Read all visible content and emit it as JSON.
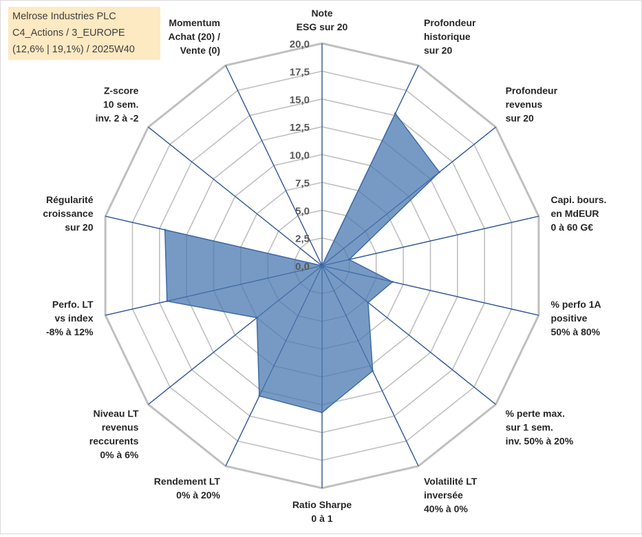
{
  "info_box": {
    "line1": "Melrose Industries PLC",
    "line2": "C4_Actions / 3_EUROPE",
    "line3": "(12,6% | 19,1%) / 2025W40"
  },
  "colors": {
    "grid": "#bfbfbf",
    "spoke": "#2f5597",
    "fill": "#4a78b0",
    "fill_opacity": "0.75",
    "stroke": "#3e6aa6",
    "text": "#262626",
    "tick_text": "#595959",
    "info_bg": "#fde9c2"
  },
  "chart_data": {
    "type": "radar",
    "title": "",
    "rmin": 0,
    "rmax": 20,
    "tick_step": 2.5,
    "tick_labels": [
      "0,0",
      "2,5",
      "5,0",
      "7,5",
      "10,0",
      "12,5",
      "15,0",
      "17,5",
      "20,0"
    ],
    "axes": [
      {
        "label": [
          "Note",
          "ESG sur 20"
        ],
        "value": 0
      },
      {
        "label": [
          "Profondeur",
          "historique",
          "sur 20"
        ],
        "value": 15.2
      },
      {
        "label": [
          "Profondeur",
          "revenus",
          "sur 20"
        ],
        "value": 13.5
      },
      {
        "label": [
          "Capi. bours.",
          "en MdEUR",
          "0 à 60 G€"
        ],
        "value": 2.5
      },
      {
        "label": [
          "% perfo 1A",
          "positive",
          "50% à 80%"
        ],
        "value": 6.5
      },
      {
        "label": [
          "% perte max.",
          "sur 1 sem.",
          "inv. 50% à 20%"
        ],
        "value": 5.3
      },
      {
        "label": [
          "Volatilité LT",
          "inversée",
          "40% à 0%"
        ],
        "value": 10.5
      },
      {
        "label": [
          "Ratio Sharpe",
          "0 à 1"
        ],
        "value": 13.2
      },
      {
        "label": [
          "Rendement LT",
          "0% à 20%"
        ],
        "value": 13.0
      },
      {
        "label": [
          "Niveau LT",
          "revenus",
          "reccurents",
          "0% à 6%"
        ],
        "value": 7.5
      },
      {
        "label": [
          "Perfo. LT",
          "vs index",
          "-8% à 12%"
        ],
        "value": 14.3
      },
      {
        "label": [
          "Régularité",
          "croissance",
          "sur 20"
        ],
        "value": 14.5
      },
      {
        "label": [
          "Z-score",
          "10 sem.",
          "inv. 2 à -2"
        ],
        "value": 0
      },
      {
        "label": [
          "Momentum",
          "Achat (20) /",
          "Vente (0)"
        ],
        "value": 0
      }
    ]
  }
}
